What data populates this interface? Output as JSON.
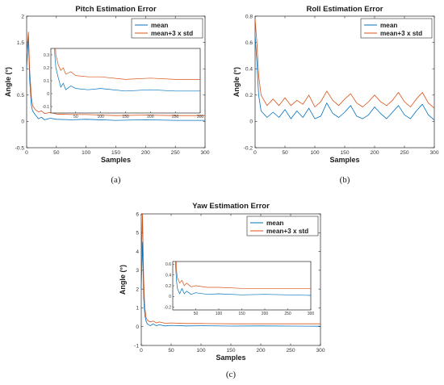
{
  "chart_data": [
    {
      "type": "line",
      "title": "Pitch Estimation Error",
      "xlabel": "Samples",
      "ylabel": "Angle  (°)",
      "caption": "(a)",
      "xlim": [
        0,
        300
      ],
      "ylim": [
        -0.5,
        2
      ],
      "xticks": [
        "0",
        "50",
        "100",
        "150",
        "200",
        "250",
        "300"
      ],
      "yticks": [
        "-0.5",
        "0",
        "0.5",
        "1",
        "1.5",
        "2"
      ],
      "legend_position": "top-right",
      "series": [
        {
          "name": "mean",
          "color": "#0072bd",
          "x": [
            0,
            3,
            5,
            8,
            10,
            15,
            20,
            25,
            30,
            40,
            50,
            75,
            100,
            150,
            200,
            250,
            300
          ],
          "values": [
            1.0,
            1.6,
            0.8,
            0.3,
            0.2,
            0.12,
            0.05,
            0.08,
            0.03,
            0.06,
            0.04,
            0.03,
            0.04,
            0.02,
            0.03,
            0.02,
            0.02
          ]
        },
        {
          "name": "mean+3 x std",
          "color": "#d95319",
          "x": [
            0,
            3,
            5,
            8,
            10,
            15,
            20,
            25,
            30,
            40,
            50,
            75,
            100,
            150,
            200,
            250,
            300
          ],
          "values": [
            1.3,
            1.7,
            1.0,
            0.45,
            0.3,
            0.22,
            0.18,
            0.2,
            0.15,
            0.17,
            0.14,
            0.13,
            0.13,
            0.11,
            0.12,
            0.11,
            0.11
          ]
        }
      ],
      "inset": {
        "xlim": [
          0,
          300
        ],
        "ylim": [
          -0.15,
          0.35
        ],
        "xticks": [
          "50",
          "100",
          "150",
          "200",
          "250",
          "300"
        ],
        "yticks": [
          "-0.1",
          "0",
          "0.1",
          "0.2",
          "0.3"
        ]
      }
    },
    {
      "type": "line",
      "title": "Roll Estimation Error",
      "xlabel": "Samples",
      "ylabel": "Angle  (°)",
      "caption": "(b)",
      "xlim": [
        0,
        300
      ],
      "ylim": [
        -0.2,
        0.8
      ],
      "xticks": [
        "0",
        "50",
        "100",
        "150",
        "200",
        "250",
        "300"
      ],
      "yticks": [
        "-0.2",
        "0",
        "0.2",
        "0.4",
        "0.6",
        "0.8"
      ],
      "legend_position": "top-right",
      "series": [
        {
          "name": "mean",
          "color": "#0072bd",
          "x": [
            0,
            3,
            6,
            10,
            20,
            30,
            40,
            50,
            60,
            70,
            80,
            90,
            100,
            110,
            120,
            130,
            140,
            150,
            160,
            170,
            180,
            190,
            200,
            210,
            220,
            230,
            240,
            250,
            260,
            270,
            280,
            290,
            300
          ],
          "values": [
            0.65,
            0.45,
            0.2,
            0.08,
            0.03,
            0.07,
            0.03,
            0.09,
            0.02,
            0.08,
            0.03,
            0.1,
            0.02,
            0.04,
            0.14,
            0.06,
            0.03,
            0.07,
            0.12,
            0.04,
            0.02,
            0.05,
            0.11,
            0.06,
            0.02,
            0.07,
            0.12,
            0.05,
            0.02,
            0.08,
            0.13,
            0.05,
            0.01
          ]
        },
        {
          "name": "mean+3 x std",
          "color": "#d95319",
          "x": [
            0,
            3,
            6,
            10,
            20,
            30,
            40,
            50,
            60,
            70,
            80,
            90,
            100,
            110,
            120,
            130,
            140,
            150,
            160,
            170,
            180,
            190,
            200,
            210,
            220,
            230,
            240,
            250,
            260,
            270,
            280,
            290,
            300
          ],
          "values": [
            0.78,
            0.6,
            0.35,
            0.2,
            0.12,
            0.17,
            0.12,
            0.18,
            0.12,
            0.16,
            0.13,
            0.2,
            0.11,
            0.15,
            0.23,
            0.16,
            0.12,
            0.17,
            0.21,
            0.14,
            0.11,
            0.15,
            0.2,
            0.15,
            0.12,
            0.16,
            0.22,
            0.15,
            0.11,
            0.17,
            0.22,
            0.14,
            0.1
          ]
        }
      ]
    },
    {
      "type": "line",
      "title": "Yaw Estimation Error",
      "xlabel": "Samples",
      "ylabel": "Angle  (°)",
      "caption": "(c)",
      "xlim": [
        0,
        300
      ],
      "ylim": [
        -1,
        6
      ],
      "xticks": [
        "0",
        "50",
        "100",
        "150",
        "200",
        "250",
        "300"
      ],
      "yticks": [
        "-1",
        "0",
        "1",
        "2",
        "3",
        "4",
        "5",
        "6"
      ],
      "legend_position": "top-right",
      "series": [
        {
          "name": "mean",
          "color": "#0072bd",
          "x": [
            0,
            2,
            4,
            6,
            8,
            10,
            15,
            20,
            25,
            30,
            40,
            50,
            75,
            100,
            150,
            200,
            250,
            300
          ],
          "values": [
            2.0,
            4.5,
            1.5,
            0.6,
            0.3,
            0.15,
            0.05,
            0.15,
            0.05,
            0.1,
            0.04,
            0.07,
            0.04,
            0.05,
            0.03,
            0.04,
            0.03,
            0.02
          ]
        },
        {
          "name": "mean+3 x std",
          "color": "#d95319",
          "x": [
            0,
            2,
            4,
            6,
            8,
            10,
            15,
            20,
            25,
            30,
            40,
            50,
            75,
            100,
            150,
            200,
            250,
            300
          ],
          "values": [
            3.0,
            6.0,
            2.5,
            1.0,
            0.5,
            0.35,
            0.25,
            0.3,
            0.2,
            0.25,
            0.18,
            0.2,
            0.17,
            0.17,
            0.15,
            0.15,
            0.15,
            0.15
          ]
        }
      ],
      "inset": {
        "xlim": [
          0,
          300
        ],
        "ylim": [
          -0.25,
          0.65
        ],
        "xticks": [
          "50",
          "100",
          "150",
          "200",
          "250",
          "300"
        ],
        "yticks": [
          "-0.2",
          "0",
          "0.2",
          "0.4",
          "0.6"
        ]
      }
    }
  ]
}
